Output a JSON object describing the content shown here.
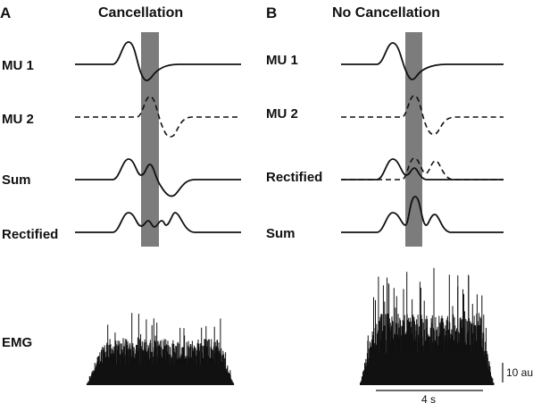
{
  "panels": [
    {
      "letter": "A",
      "title": "Cancellation",
      "rows": [
        "MU 1",
        "MU 2",
        "Sum",
        "Rectified"
      ]
    },
    {
      "letter": "B",
      "title": "No Cancellation",
      "rows": [
        "MU 1",
        "MU 2",
        "Rectified",
        "Sum"
      ]
    }
  ],
  "emg_label": "EMG",
  "scale": {
    "amplitude": "10 au",
    "time": "4 s"
  }
}
